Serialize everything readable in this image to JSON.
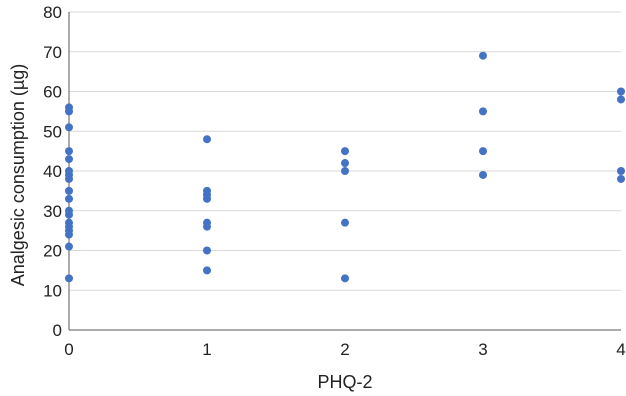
{
  "chart_data": {
    "type": "scatter",
    "title": "",
    "xlabel": "PHQ-2",
    "ylabel": "Analgesic consumption (µg)",
    "xlim": [
      0,
      4
    ],
    "ylim": [
      0,
      80
    ],
    "x_ticks": [
      "0",
      "1",
      "2",
      "3",
      "4"
    ],
    "y_ticks": [
      "0",
      "10",
      "20",
      "30",
      "40",
      "50",
      "60",
      "70",
      "80"
    ],
    "grid": "horizontal",
    "marker_color": "#4472c4",
    "series": [
      {
        "points": [
          {
            "x": 0,
            "y": 56
          },
          {
            "x": 0,
            "y": 55
          },
          {
            "x": 0,
            "y": 51
          },
          {
            "x": 0,
            "y": 45
          },
          {
            "x": 0,
            "y": 43
          },
          {
            "x": 0,
            "y": 40
          },
          {
            "x": 0,
            "y": 39
          },
          {
            "x": 0,
            "y": 38
          },
          {
            "x": 0,
            "y": 35
          },
          {
            "x": 0,
            "y": 33
          },
          {
            "x": 0,
            "y": 30
          },
          {
            "x": 0,
            "y": 29
          },
          {
            "x": 0,
            "y": 27
          },
          {
            "x": 0,
            "y": 26
          },
          {
            "x": 0,
            "y": 25
          },
          {
            "x": 0,
            "y": 24
          },
          {
            "x": 0,
            "y": 21
          },
          {
            "x": 0,
            "y": 13
          },
          {
            "x": 1,
            "y": 48
          },
          {
            "x": 1,
            "y": 35
          },
          {
            "x": 1,
            "y": 34
          },
          {
            "x": 1,
            "y": 33
          },
          {
            "x": 1,
            "y": 27
          },
          {
            "x": 1,
            "y": 26
          },
          {
            "x": 1,
            "y": 20
          },
          {
            "x": 1,
            "y": 15
          },
          {
            "x": 2,
            "y": 45
          },
          {
            "x": 2,
            "y": 42
          },
          {
            "x": 2,
            "y": 40
          },
          {
            "x": 2,
            "y": 27
          },
          {
            "x": 2,
            "y": 13
          },
          {
            "x": 3,
            "y": 69
          },
          {
            "x": 3,
            "y": 55
          },
          {
            "x": 3,
            "y": 45
          },
          {
            "x": 3,
            "y": 39
          },
          {
            "x": 4,
            "y": 60
          },
          {
            "x": 4,
            "y": 58
          },
          {
            "x": 4,
            "y": 40
          },
          {
            "x": 4,
            "y": 38
          }
        ]
      }
    ]
  }
}
